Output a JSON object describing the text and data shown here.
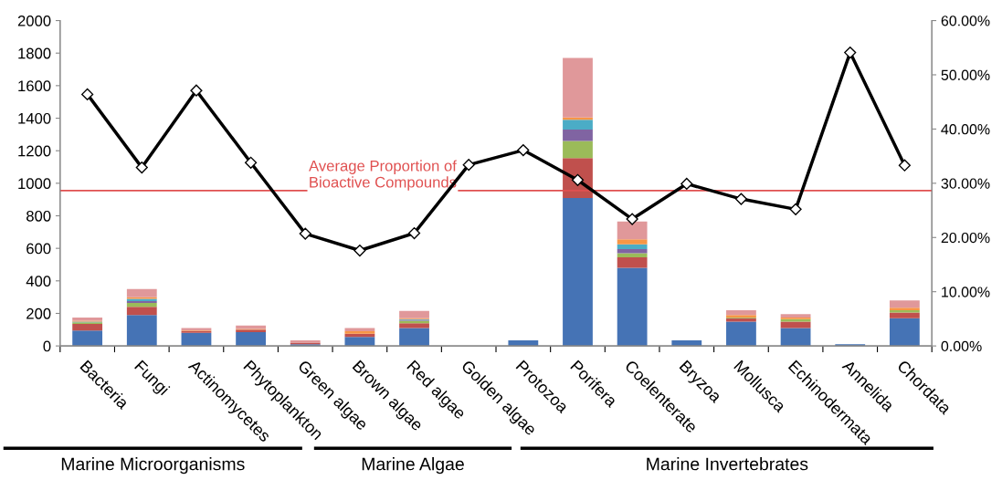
{
  "chart_data": {
    "type": "bar",
    "stacked": true,
    "categories": [
      "Bacteria",
      "Fungi",
      "Actinomycetes",
      "Phytoplankton",
      "Green algae",
      "Brown algae",
      "Red algae",
      "Golden algae",
      "Protozoa",
      "Porifera",
      "Coelenterate",
      "Bryzoa",
      "Mollusca",
      "Echinodermata",
      "Annelida",
      "Chordata"
    ],
    "series": [
      {
        "color": "#4573b5",
        "values": [
          95,
          190,
          80,
          85,
          10,
          55,
          110,
          0,
          35,
          910,
          480,
          35,
          150,
          110,
          10,
          170
        ]
      },
      {
        "color": "#c0504d",
        "values": [
          40,
          50,
          10,
          15,
          10,
          20,
          30,
          0,
          0,
          245,
          65,
          0,
          20,
          40,
          0,
          35
        ]
      },
      {
        "color": "#9bbb59",
        "values": [
          10,
          25,
          0,
          0,
          0,
          0,
          15,
          0,
          0,
          105,
          25,
          0,
          5,
          15,
          0,
          15
        ]
      },
      {
        "color": "#8064a2",
        "values": [
          0,
          10,
          0,
          0,
          0,
          0,
          5,
          0,
          0,
          70,
          25,
          0,
          0,
          0,
          0,
          0
        ]
      },
      {
        "color": "#4bacc6",
        "values": [
          5,
          15,
          0,
          0,
          0,
          0,
          5,
          0,
          0,
          60,
          30,
          0,
          0,
          0,
          0,
          0
        ]
      },
      {
        "color": "#f79646",
        "values": [
          5,
          10,
          5,
          5,
          0,
          15,
          5,
          0,
          0,
          15,
          30,
          0,
          15,
          10,
          0,
          15
        ]
      },
      {
        "color": "#e0989a",
        "values": [
          20,
          50,
          15,
          20,
          15,
          20,
          45,
          0,
          0,
          365,
          110,
          0,
          30,
          20,
          0,
          45
        ]
      },
      {
        "type": "line",
        "axis": "y2",
        "color": "#000000",
        "marker": "diamond",
        "line_style": "solid",
        "values": [
          46.4,
          32.9,
          47.1,
          33.8,
          20.7,
          17.6,
          20.8,
          33.4,
          36.1,
          30.6,
          23.4,
          29.9,
          27.1,
          25.2,
          54.1,
          33.3
        ]
      }
    ],
    "ylim": [
      0,
      2000
    ],
    "yticks": [
      0,
      200,
      400,
      600,
      800,
      1000,
      1200,
      1400,
      1600,
      1800,
      2000
    ],
    "y2lim": [
      0,
      60
    ],
    "y2ticks": [
      {
        "value": 0,
        "label": "0.00%"
      },
      {
        "value": 10,
        "label": "10.00%"
      },
      {
        "value": 20,
        "label": "20.00%"
      },
      {
        "value": 30,
        "label": "30.00%"
      },
      {
        "value": 40,
        "label": "40.00%"
      },
      {
        "value": 50,
        "label": "50.00%"
      },
      {
        "value": 60,
        "label": "60.00%"
      }
    ],
    "ref_lines": [
      {
        "axis": "y",
        "value": 955,
        "label": "Average Proportion of\nBioactive Compounds",
        "color": "#e05050"
      }
    ],
    "annotations": [
      "Marine Microorganisms",
      "Marine Algae",
      "Marine Invertebrates"
    ],
    "grid": false,
    "legend": false
  }
}
